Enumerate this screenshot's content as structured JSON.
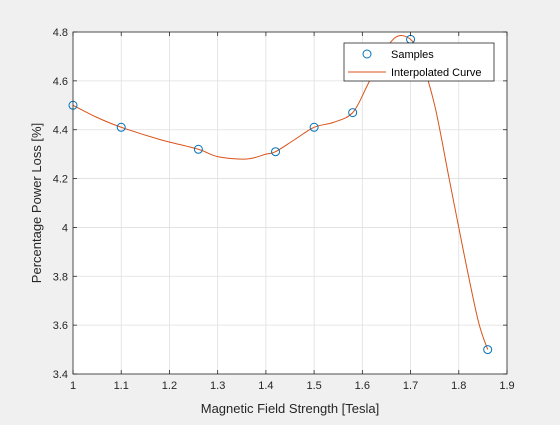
{
  "chart_data": {
    "type": "line",
    "xlabel": "Magnetic Field Strength [Tesla]",
    "ylabel": "Percentage Power Loss [%]",
    "xlim": [
      1,
      1.9
    ],
    "ylim": [
      3.4,
      4.8
    ],
    "xticks": [
      1,
      1.1,
      1.2,
      1.3,
      1.4,
      1.5,
      1.6,
      1.7,
      1.8,
      1.9
    ],
    "xtick_labels": [
      "1",
      "1.1",
      "1.2",
      "1.3",
      "1.4",
      "1.5",
      "1.6",
      "1.7",
      "1.8",
      "1.9"
    ],
    "yticks": [
      3.4,
      3.6,
      3.8,
      4,
      4.2,
      4.4,
      4.6,
      4.8
    ],
    "ytick_labels": [
      "3.4",
      "3.6",
      "3.8",
      "4",
      "4.2",
      "4.4",
      "4.6",
      "4.8"
    ],
    "grid": true,
    "legend_position": "top-right",
    "series": [
      {
        "name": "Samples",
        "style": "markers",
        "marker": "circle",
        "color": "#0072bd",
        "x": [
          1.0,
          1.1,
          1.26,
          1.42,
          1.5,
          1.58,
          1.7,
          1.86
        ],
        "y": [
          4.5,
          4.41,
          4.32,
          4.31,
          4.41,
          4.47,
          4.77,
          3.5
        ]
      },
      {
        "name": "Interpolated Curve",
        "style": "line",
        "color": "#d95319",
        "x": [
          1.0,
          1.05,
          1.1,
          1.18,
          1.26,
          1.3,
          1.36,
          1.4,
          1.42,
          1.46,
          1.5,
          1.54,
          1.58,
          1.61,
          1.64,
          1.67,
          1.7,
          1.72,
          1.75,
          1.78,
          1.81,
          1.84,
          1.86
        ],
        "y": [
          4.5,
          4.45,
          4.41,
          4.36,
          4.32,
          4.29,
          4.28,
          4.3,
          4.31,
          4.36,
          4.41,
          4.43,
          4.47,
          4.58,
          4.7,
          4.78,
          4.77,
          4.7,
          4.5,
          4.2,
          3.9,
          3.62,
          3.5
        ]
      }
    ]
  }
}
